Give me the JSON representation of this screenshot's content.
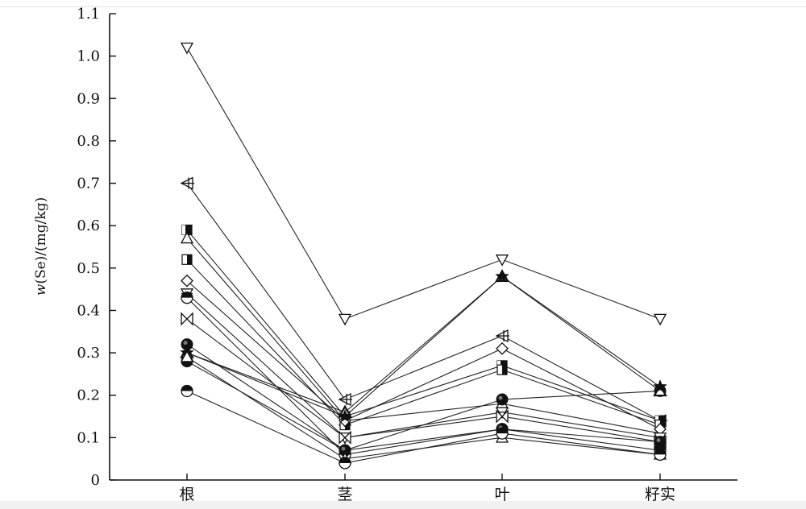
{
  "chart_data": {
    "type": "line",
    "title": "",
    "xlabel": "",
    "ylabel": "w(Se)/(mg/kg)",
    "ylabel_parts": {
      "italic": "w",
      "rest": "(Se)/(mg/kg)"
    },
    "categories": [
      "根",
      "茎",
      "叶",
      "籽实"
    ],
    "ylim": [
      0,
      1.1
    ],
    "yticks": [
      "0",
      "0.1",
      "0.2",
      "0.3",
      "0.4",
      "0.5",
      "0.6",
      "0.7",
      "0.8",
      "0.9",
      "1.0",
      "1.1"
    ],
    "grid": false,
    "legend": "none",
    "line_color": "#222222",
    "series": [
      {
        "marker": "triangle-down",
        "values": [
          1.02,
          0.38,
          0.52,
          0.38
        ]
      },
      {
        "marker": "triangle-left-cross",
        "values": [
          0.7,
          0.19,
          0.34,
          0.14
        ]
      },
      {
        "marker": "square-filled",
        "values": [
          0.59,
          0.15,
          0.27,
          0.14
        ]
      },
      {
        "marker": "triangle-up",
        "values": [
          0.57,
          0.14,
          0.18,
          0.11
        ]
      },
      {
        "marker": "square-half",
        "values": [
          0.52,
          0.13,
          0.26,
          0.13
        ]
      },
      {
        "marker": "diamond",
        "values": [
          0.47,
          0.14,
          0.31,
          0.12
        ]
      },
      {
        "marker": "triangle-down-cross",
        "values": [
          0.44,
          0.1,
          0.16,
          0.1
        ]
      },
      {
        "marker": "circle-half",
        "values": [
          0.43,
          0.06,
          0.12,
          0.07
        ]
      },
      {
        "marker": "bowtie",
        "values": [
          0.38,
          0.1,
          0.15,
          0.09
        ]
      },
      {
        "marker": "circle-filled",
        "values": [
          0.32,
          0.07,
          0.19,
          0.21
        ]
      },
      {
        "marker": "triangle-up-bold",
        "values": [
          0.3,
          0.16,
          0.48,
          0.21
        ]
      },
      {
        "marker": "star",
        "values": [
          0.3,
          0.15,
          0.48,
          0.22
        ]
      },
      {
        "marker": "circle-filled",
        "values": [
          0.28,
          0.07,
          0.12,
          0.09
        ]
      },
      {
        "marker": "triangle-up",
        "values": [
          0.29,
          0.05,
          0.1,
          0.06
        ]
      },
      {
        "marker": "circle-half",
        "values": [
          0.21,
          0.04,
          0.11,
          0.06
        ]
      }
    ]
  }
}
